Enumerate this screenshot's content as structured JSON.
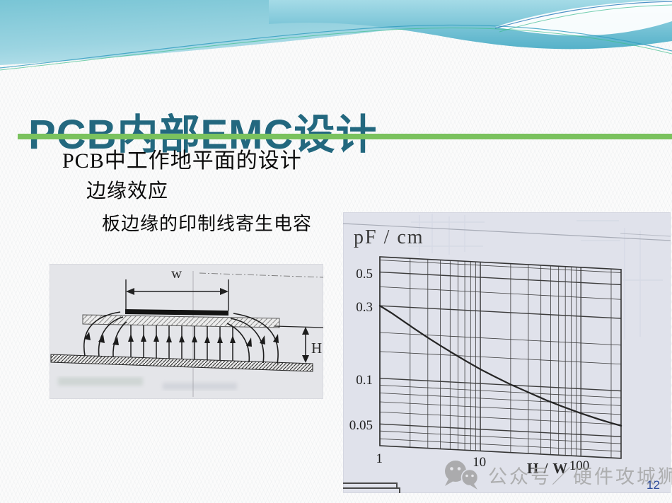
{
  "slide": {
    "title": "PCB内部EMC设计",
    "bullets": [
      "PCB中工作地平面的设计",
      "边缘效应",
      "板边缘的印制线寄生电容"
    ],
    "page_number": "12",
    "watermark_text": "公众号／硬件攻城狮"
  },
  "colors": {
    "title": "#23687f",
    "underline_green": "#7ac25e",
    "banner_teal": "#7cc6d6",
    "scan_background_left": "#e4e5e9",
    "scan_background_right": "#e0e2eb",
    "watermark_gray": "#a3a3a3",
    "page_number_blue": "#2e4c9b"
  },
  "icons": {
    "watermark_icon": "wechat-icon"
  },
  "diagram": {
    "width_label": "w",
    "height_label": "H"
  },
  "chart_data": {
    "type": "line",
    "title": "",
    "ylabel": "pF / cm",
    "xlabel": "H / W",
    "x_scale": "log",
    "y_scale": "log",
    "xlim": [
      1,
      251
    ],
    "ylim": [
      0.036,
      0.63
    ],
    "x_ticks": [
      1,
      10,
      100
    ],
    "y_ticks": [
      0.5,
      0.3,
      0.1,
      0.05
    ],
    "grid_x": [
      1,
      2,
      3,
      4,
      5,
      6,
      7,
      8,
      9,
      10,
      20,
      30,
      40,
      50,
      60,
      70,
      80,
      90,
      100,
      200
    ],
    "grid_y": [
      0.6,
      0.5,
      0.4,
      0.3,
      0.2,
      0.15,
      0.1,
      0.09,
      0.08,
      0.07,
      0.06,
      0.05,
      0.045,
      0.04
    ],
    "grid": true,
    "legend": false,
    "series": [
      {
        "name": "edge-trace-parasitic-capacitance",
        "x": [
          1,
          1.3,
          1.7,
          2.2,
          3,
          4,
          5.5,
          7.5,
          10,
          14,
          20,
          30,
          45,
          65,
          100,
          150,
          200,
          251
        ],
        "y": [
          0.3,
          0.272,
          0.243,
          0.218,
          0.192,
          0.172,
          0.153,
          0.137,
          0.124,
          0.112,
          0.101,
          0.091,
          0.082,
          0.0755,
          0.069,
          0.064,
          0.061,
          0.059
        ]
      }
    ]
  }
}
